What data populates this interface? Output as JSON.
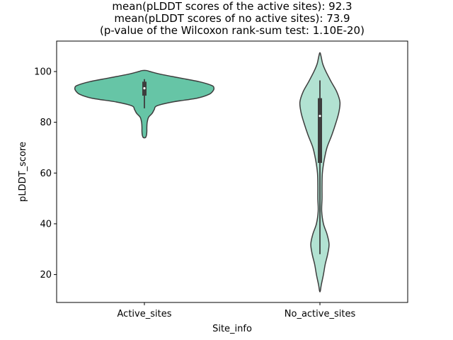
{
  "chart_data": {
    "type": "violin",
    "title": [
      "mean(pLDDT scores of the active sites): 92.3",
      "mean(pLDDT scores of no active sites): 73.9",
      "(p-value of the Wilcoxon rank-sum test: 1.10E-20)"
    ],
    "xlabel": "Site_info",
    "ylabel": "pLDDT_score",
    "ylim": [
      9,
      112
    ],
    "yticks": [
      20,
      40,
      60,
      80,
      100
    ],
    "categories": [
      "Active_sites",
      "No_active_sites"
    ],
    "series": [
      {
        "category": "Active_sites",
        "color": "#66c5a6",
        "whisker": [
          85.5,
          97
        ],
        "q1": 90.5,
        "median": 93.4,
        "q3": 96,
        "density_profile": [
          [
            74,
            1.5
          ],
          [
            75,
            3
          ],
          [
            76.5,
            3.5
          ],
          [
            78,
            3.5
          ],
          [
            80,
            4
          ],
          [
            82,
            6
          ],
          [
            83.5,
            11
          ],
          [
            85,
            14
          ],
          [
            86.5,
            18
          ],
          [
            88,
            40
          ],
          [
            89.5,
            75
          ],
          [
            91,
            92
          ],
          [
            92.5,
            98
          ],
          [
            93.5,
            99
          ],
          [
            94.5,
            96
          ],
          [
            96,
            78
          ],
          [
            97.5,
            50
          ],
          [
            99,
            22
          ],
          [
            100,
            8
          ],
          [
            100.4,
            3
          ]
        ]
      },
      {
        "category": "No_active_sites",
        "color": "#b2e2d2",
        "whisker": [
          28,
          96.5
        ],
        "q1": 64,
        "median": 82.5,
        "q3": 89.5,
        "density_profile": [
          [
            13.5,
            0.5
          ],
          [
            16,
            2
          ],
          [
            20,
            5
          ],
          [
            24,
            7.5
          ],
          [
            28,
            11
          ],
          [
            32,
            13
          ],
          [
            36,
            10
          ],
          [
            40,
            5
          ],
          [
            45,
            2.5
          ],
          [
            50,
            3
          ],
          [
            55,
            3
          ],
          [
            60,
            3.5
          ],
          [
            65,
            6
          ],
          [
            70,
            10
          ],
          [
            75,
            17
          ],
          [
            80,
            23
          ],
          [
            84,
            27
          ],
          [
            88,
            28.5
          ],
          [
            92,
            24
          ],
          [
            96,
            16
          ],
          [
            100,
            8.5
          ],
          [
            103,
            4
          ],
          [
            105.5,
            2
          ],
          [
            107.2,
            0.5
          ]
        ]
      }
    ]
  }
}
